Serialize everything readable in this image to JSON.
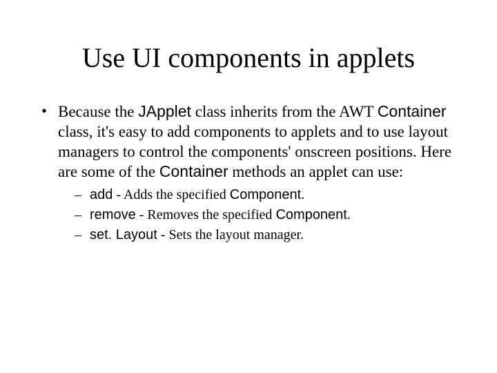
{
  "title": "Use UI components in applets",
  "bullet": {
    "t1": "Because the ",
    "c1": "JApplet",
    "t2": " class inherits from the AWT ",
    "c2": "Container",
    "t3": " class, it's easy to add components to applets and to use layout managers to control the components' onscreen positions. Here are some of the ",
    "c3": "Container",
    "t4": " methods an applet can use:"
  },
  "subs": [
    {
      "code": "add",
      "sep": " - ",
      "pre": "Adds the specified ",
      "comp": "Component",
      "post": "."
    },
    {
      "code": "remove",
      "sep": " - ",
      "pre": "Removes the specified ",
      "comp": "Component",
      "post": "."
    },
    {
      "code": "set. Layout",
      "sep": " - ",
      "pre": "Sets the layout manager.",
      "comp": "",
      "post": ""
    }
  ],
  "style": {
    "background": "#ffffff",
    "text_color": "#000000",
    "title_fontsize": 40,
    "body_fontsize": 23,
    "sub_fontsize": 20,
    "serif_font": "Times New Roman",
    "code_font": "Arial"
  }
}
